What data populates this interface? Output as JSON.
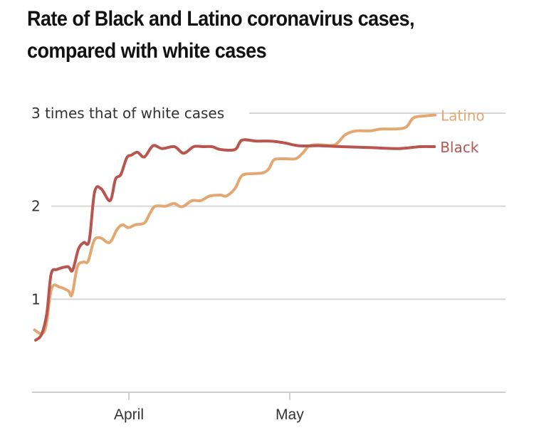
{
  "chart_data": {
    "type": "line",
    "title": "Rate of Black and Latino coronavirus cases, compared with white cases",
    "xlabel": "",
    "ylabel": "",
    "ylim": [
      0,
      3
    ],
    "xlim_days_from_april1": [
      -18,
      70
    ],
    "grid": true,
    "y_ticks": [
      {
        "value": 3,
        "label": "3 times that of white cases"
      },
      {
        "value": 2,
        "label": "2"
      },
      {
        "value": 1,
        "label": "1"
      }
    ],
    "x_ticks": [
      {
        "day": 0,
        "label": "April"
      },
      {
        "day": 30,
        "label": "May"
      }
    ],
    "series": [
      {
        "name": "Latino",
        "label": "Latino",
        "color": "#e3a872",
        "x_days": [
          -17.6,
          -16.2,
          -15.4,
          -14.4,
          -12.9,
          -11.3,
          -10.6,
          -9.6,
          -8.5,
          -7.6,
          -6.5,
          -5.3,
          -3.6,
          -2.2,
          -1.2,
          -0.1,
          1.2,
          2.9,
          3.9,
          4.9,
          6.8,
          8.4,
          9.4,
          10.2,
          11.8,
          13.4,
          15.1,
          17.1,
          18.2,
          19.8,
          21.1,
          23.1,
          25.1,
          26.2,
          27.1,
          29.1,
          31.1,
          32.4,
          33.7,
          35.7,
          38.4,
          40.4,
          42.4,
          45.0,
          47.0,
          49.7,
          51.7,
          53.1,
          55.1,
          57.1
        ],
        "values": [
          0.67,
          0.63,
          0.73,
          1.12,
          1.13,
          1.09,
          1.05,
          1.35,
          1.4,
          1.41,
          1.63,
          1.66,
          1.61,
          1.75,
          1.8,
          1.77,
          1.8,
          1.82,
          1.92,
          2.0,
          2.0,
          2.03,
          2.0,
          2.0,
          2.06,
          2.06,
          2.11,
          2.12,
          2.11,
          2.19,
          2.33,
          2.35,
          2.36,
          2.41,
          2.5,
          2.51,
          2.51,
          2.57,
          2.65,
          2.66,
          2.66,
          2.77,
          2.81,
          2.81,
          2.83,
          2.83,
          2.85,
          2.95,
          2.97,
          2.98
        ]
      },
      {
        "name": "Black",
        "label": "Black",
        "color": "#b8554e",
        "x_days": [
          -17.4,
          -16.3,
          -15.3,
          -14.5,
          -13.4,
          -11.4,
          -10.5,
          -9.4,
          -8.4,
          -7.4,
          -6.4,
          -5.2,
          -3.5,
          -2.5,
          -1.5,
          -0.4,
          0.5,
          1.6,
          2.9,
          4.5,
          6.2,
          8.5,
          10.2,
          12.1,
          13.8,
          15.5,
          17.1,
          19.8,
          21.1,
          23.8,
          26.4,
          29.1,
          31.7,
          35.7,
          39.7,
          45.0,
          50.3,
          54.3,
          57.0
        ],
        "values": [
          0.56,
          0.62,
          0.85,
          1.27,
          1.32,
          1.35,
          1.31,
          1.54,
          1.61,
          1.63,
          2.15,
          2.19,
          2.06,
          2.29,
          2.34,
          2.52,
          2.55,
          2.58,
          2.53,
          2.65,
          2.62,
          2.64,
          2.57,
          2.64,
          2.64,
          2.64,
          2.61,
          2.61,
          2.71,
          2.7,
          2.7,
          2.68,
          2.65,
          2.65,
          2.64,
          2.63,
          2.62,
          2.64,
          2.64
        ]
      }
    ]
  }
}
